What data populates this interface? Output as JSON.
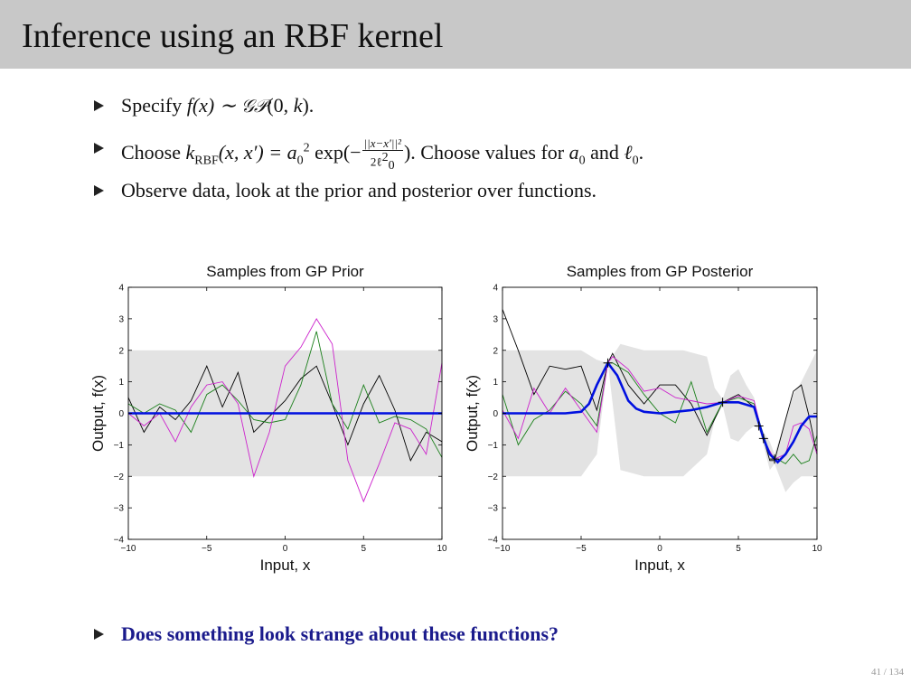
{
  "slide": {
    "title": "Inference using an RBF kernel",
    "bullet1": {
      "pre": "Specify ",
      "f": "f",
      "x1": "(x) ∼ ",
      "gp": "𝒢𝒫",
      "args": "(0, ",
      "k": "k",
      "end": ")."
    },
    "bullet2": {
      "pre": "Choose ",
      "k": "k",
      "sub": "RBF",
      "args": "(x, x′) = ",
      "a": "a",
      "a_sub": "0",
      "a_sup": "2",
      "exp": " exp(−",
      "num": "||x−x′||²",
      "den_pre": "2ℓ",
      "den_sup": "2",
      "den_sub": "0",
      "post": "). Choose values for ",
      "a0": "a",
      "a0_sub": "0",
      "and": " and ",
      "l0": "ℓ",
      "l0_sub": "0",
      "dot": "."
    },
    "bullet3": "Observe data, look at the prior and posterior over functions.",
    "question": "Does something look strange about these functions?",
    "page": "41 / 134"
  },
  "colors": {
    "mean": "#0010e0",
    "band": "#e3e3e3",
    "sample1": "#000000",
    "sample2": "#1a7f1a",
    "sample3": "#cc22cc"
  },
  "chart_data": [
    {
      "type": "line",
      "title": "Samples from GP Prior",
      "xlabel": "Input, x",
      "ylabel": "Output, f(x)",
      "xlim": [
        -10,
        10
      ],
      "ylim": [
        -4,
        4
      ],
      "xticks": [
        -10,
        -5,
        0,
        5,
        10
      ],
      "xtick_labels": [
        "−10",
        "−5",
        "0",
        "5",
        "10"
      ],
      "yticks": [
        -4,
        -3,
        -2,
        -1,
        0,
        1,
        2,
        3,
        4
      ],
      "ytick_labels": [
        "−4",
        "−3",
        "−2",
        "−1",
        "0",
        "1",
        "2",
        "3",
        "4"
      ],
      "band": {
        "x": [
          -10,
          10
        ],
        "upper": [
          2,
          2
        ],
        "lower": [
          -2,
          -2
        ]
      },
      "mean": {
        "x": [
          -10,
          10
        ],
        "y": [
          0,
          0
        ]
      },
      "samples": [
        {
          "color": "sample1",
          "x": [
            -10,
            -9,
            -8,
            -7,
            -6,
            -5,
            -4,
            -3,
            -2,
            -1,
            0,
            1,
            2,
            3,
            4,
            5,
            6,
            7,
            8,
            9,
            10
          ],
          "y": [
            0.5,
            -0.6,
            0.2,
            -0.2,
            0.4,
            1.5,
            0.2,
            1.3,
            -0.6,
            -0.1,
            0.4,
            1.1,
            1.5,
            0.3,
            -1.0,
            0.3,
            1.2,
            0.1,
            -1.5,
            -0.6,
            -0.9
          ]
        },
        {
          "color": "sample2",
          "x": [
            -10,
            -9,
            -8,
            -7,
            -6,
            -5,
            -4,
            -3,
            -2,
            -1,
            0,
            1,
            2,
            3,
            4,
            5,
            6,
            7,
            8,
            9,
            10
          ],
          "y": [
            0.3,
            0.0,
            0.3,
            0.1,
            -0.6,
            0.6,
            0.9,
            0.4,
            -0.2,
            -0.3,
            -0.2,
            0.9,
            2.6,
            0.3,
            -0.5,
            0.9,
            -0.3,
            -0.1,
            -0.2,
            -0.5,
            -1.4
          ]
        },
        {
          "color": "sample3",
          "x": [
            -10,
            -9,
            -8,
            -7,
            -6,
            -5,
            -4,
            -3,
            -2,
            -1,
            0,
            1,
            2,
            3,
            4,
            5,
            6,
            7,
            8,
            9,
            10
          ],
          "y": [
            0.0,
            -0.4,
            0.0,
            -0.9,
            0.2,
            0.9,
            1.0,
            0.3,
            -2.0,
            -0.6,
            1.5,
            2.1,
            3.0,
            2.2,
            -1.5,
            -2.8,
            -1.6,
            -0.3,
            -0.5,
            -1.3,
            1.6
          ]
        }
      ]
    },
    {
      "type": "line",
      "title": "Samples from GP Posterior",
      "xlabel": "Input, x",
      "ylabel": "Output, f(x)",
      "xlim": [
        -10,
        10
      ],
      "ylim": [
        -4,
        4
      ],
      "xticks": [
        -10,
        -5,
        0,
        5,
        10
      ],
      "xtick_labels": [
        "−10",
        "−5",
        "0",
        "5",
        "10"
      ],
      "yticks": [
        -4,
        -3,
        -2,
        -1,
        0,
        1,
        2,
        3,
        4
      ],
      "ytick_labels": [
        "−4",
        "−3",
        "−2",
        "−1",
        "0",
        "1",
        "2",
        "3",
        "4"
      ],
      "observations": [
        [
          -3.3,
          1.6
        ],
        [
          4.0,
          0.35
        ],
        [
          6.3,
          -0.4
        ],
        [
          6.6,
          -0.8
        ],
        [
          7.3,
          -1.45
        ]
      ],
      "band": {
        "x": [
          -10,
          -7,
          -5,
          -4,
          -3.3,
          -2.5,
          -1,
          0,
          1.5,
          3,
          3.5,
          4,
          4.5,
          5,
          5.5,
          6,
          6.3,
          6.6,
          7,
          7.3,
          8,
          8.5,
          9,
          10
        ],
        "upper": [
          2,
          2,
          2,
          1.7,
          1.6,
          2.2,
          2.0,
          2,
          2,
          1.8,
          0.8,
          0.45,
          1.2,
          1.4,
          0.9,
          0.5,
          -0.3,
          -0.6,
          -0.9,
          -1.3,
          -0.2,
          0.6,
          1.0,
          2
        ],
        "lower": [
          -2,
          -2,
          -2,
          -1.3,
          1.6,
          -1.8,
          -2.0,
          -2,
          -2,
          -1.3,
          -0.2,
          0.25,
          -0.8,
          -0.9,
          -0.6,
          -0.4,
          -0.5,
          -1.0,
          -1.8,
          -1.6,
          -2.5,
          -2.2,
          -2.0,
          -2
        ]
      },
      "mean": {
        "x": [
          -10,
          -6,
          -5,
          -4.5,
          -4,
          -3.3,
          -2.7,
          -2,
          -1.5,
          -1,
          0,
          1,
          2,
          3,
          4,
          5,
          6,
          6.3,
          6.6,
          7,
          7.5,
          8,
          8.5,
          9,
          9.5,
          10
        ],
        "y": [
          0,
          0,
          0.05,
          0.3,
          0.9,
          1.6,
          1.2,
          0.4,
          0.15,
          0.05,
          0.0,
          0.05,
          0.1,
          0.2,
          0.35,
          0.35,
          0.2,
          -0.3,
          -0.8,
          -1.3,
          -1.55,
          -1.3,
          -0.9,
          -0.4,
          -0.1,
          -0.1
        ]
      },
      "samples": [
        {
          "color": "sample1",
          "x": [
            -10,
            -9,
            -8,
            -7,
            -6,
            -5,
            -4,
            -3.3,
            -3,
            -2,
            -1,
            0,
            1,
            2,
            3,
            4,
            5,
            6,
            6.3,
            6.6,
            7,
            7.3,
            8,
            8.5,
            9,
            9.5,
            10
          ],
          "y": [
            3.3,
            2.0,
            0.6,
            1.5,
            1.4,
            1.5,
            0.1,
            1.6,
            1.9,
            0.9,
            0.3,
            0.9,
            0.9,
            0.3,
            -0.7,
            0.35,
            0.6,
            0.2,
            -0.2,
            -0.8,
            -1.5,
            -1.5,
            -0.2,
            0.7,
            0.9,
            -0.1,
            -1.3
          ]
        },
        {
          "color": "sample2",
          "x": [
            -10,
            -9,
            -8,
            -7,
            -6,
            -5,
            -4,
            -3.3,
            -3,
            -2,
            -1,
            0,
            1,
            2,
            3,
            4,
            5,
            6,
            6.3,
            6.6,
            7,
            7.3,
            8,
            8.5,
            9,
            9.5,
            10
          ],
          "y": [
            0.6,
            -1.0,
            -0.2,
            0.1,
            0.7,
            0.3,
            -0.4,
            1.6,
            1.6,
            1.3,
            0.6,
            0.0,
            -0.3,
            1.0,
            -0.6,
            0.35,
            0.5,
            0.3,
            -0.2,
            -0.7,
            -1.3,
            -1.4,
            -1.6,
            -1.3,
            -1.6,
            -1.5,
            -0.7
          ]
        },
        {
          "color": "sample3",
          "x": [
            -10,
            -9,
            -8,
            -7,
            -6,
            -5,
            -4,
            -3.3,
            -3,
            -2,
            -1,
            0,
            1,
            2,
            3,
            4,
            5,
            6,
            6.3,
            6.6,
            7,
            7.3,
            8,
            8.5,
            9,
            9.5,
            10
          ],
          "y": [
            0.1,
            -0.8,
            0.8,
            0.0,
            0.8,
            0.1,
            -0.6,
            1.6,
            1.8,
            1.4,
            0.7,
            0.8,
            0.5,
            0.4,
            0.3,
            0.35,
            0.55,
            0.4,
            -0.2,
            -0.8,
            -1.2,
            -1.45,
            -1.3,
            -0.4,
            -0.3,
            -0.5,
            -1.3
          ]
        }
      ]
    }
  ]
}
